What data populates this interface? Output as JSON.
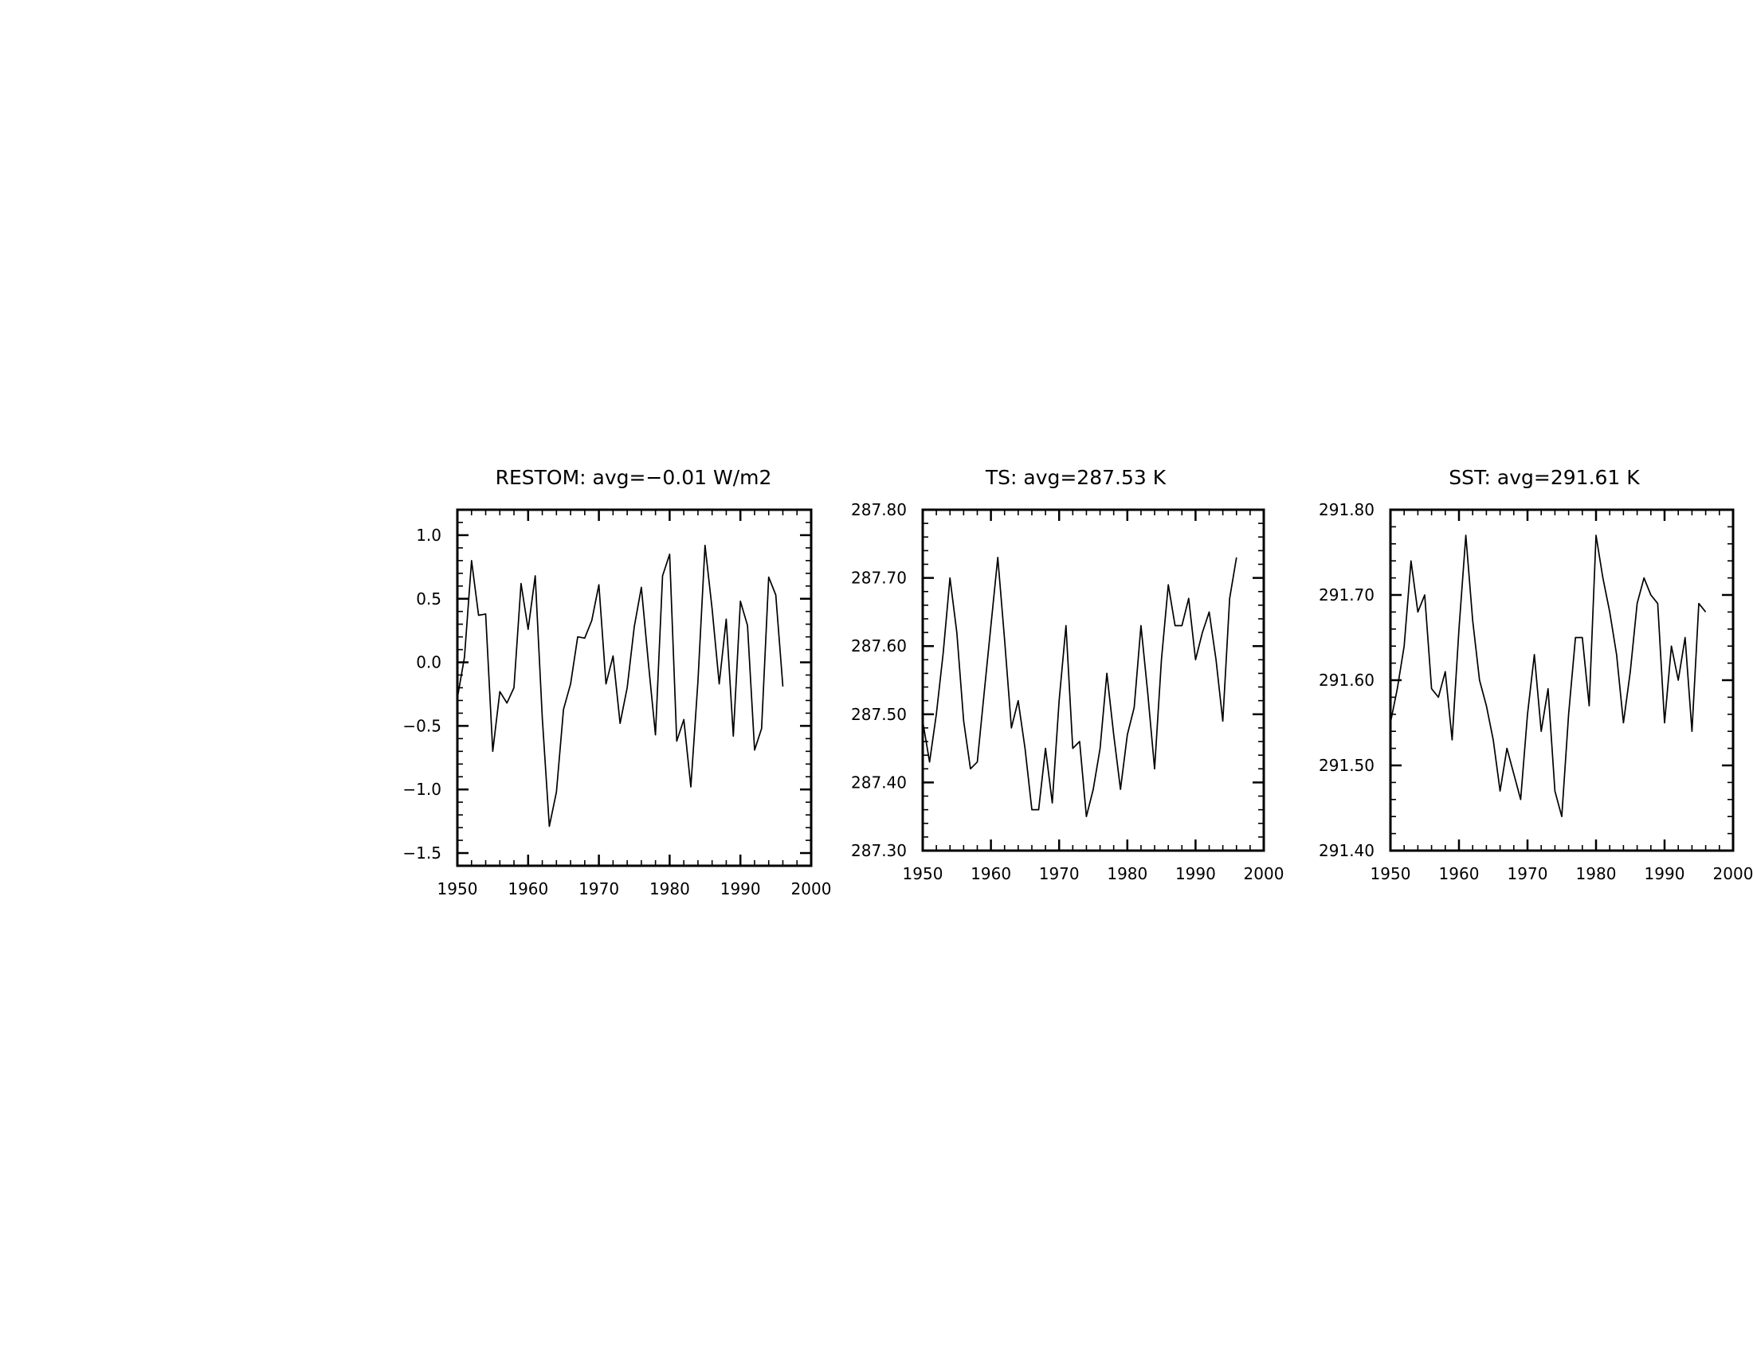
{
  "chart_data": [
    {
      "type": "line",
      "title": "RESTOM: avg=−0.01 W/m2",
      "xlabel": "",
      "ylabel": "",
      "xlim": [
        1950,
        2000
      ],
      "ylim": [
        -1.6,
        1.2
      ],
      "x_ticks": [
        1950,
        1960,
        1970,
        1980,
        1990,
        2000
      ],
      "x_tick_labels": [
        "1950",
        "1960",
        "1970",
        "1980",
        "1990",
        "2000"
      ],
      "y_ticks": [
        -1.5,
        -1.0,
        -0.5,
        0.0,
        0.5,
        1.0
      ],
      "y_tick_labels": [
        "−1.5",
        "−1.0",
        "−0.5",
        "0.0",
        "0.5",
        "1.0"
      ],
      "y_minor_step": 0.1,
      "x_minor_step": 2,
      "grid": false,
      "legend": "none",
      "line_color": "#000000",
      "x": [
        1950,
        1951,
        1952,
        1953,
        1954,
        1955,
        1956,
        1957,
        1958,
        1959,
        1960,
        1961,
        1962,
        1963,
        1964,
        1965,
        1966,
        1967,
        1968,
        1969,
        1970,
        1971,
        1972,
        1973,
        1974,
        1975,
        1976,
        1977,
        1978,
        1979,
        1980,
        1981,
        1982,
        1983,
        1984,
        1985,
        1986,
        1987,
        1988,
        1989,
        1990,
        1991,
        1992,
        1993,
        1994,
        1995,
        1996
      ],
      "y": [
        -0.28,
        0.04,
        0.8,
        0.37,
        0.38,
        -0.7,
        -0.23,
        -0.32,
        -0.2,
        0.62,
        0.26,
        0.68,
        -0.44,
        -1.29,
        -1.02,
        -0.37,
        -0.17,
        0.2,
        0.19,
        0.33,
        0.61,
        -0.17,
        0.05,
        -0.48,
        -0.2,
        0.28,
        0.59,
        -0.01,
        -0.57,
        0.68,
        0.85,
        -0.62,
        -0.45,
        -0.98,
        -0.15,
        0.92,
        0.42,
        -0.17,
        0.34,
        -0.58,
        0.48,
        0.29,
        -0.69,
        -0.52,
        0.67,
        0.53,
        -0.19
      ]
    },
    {
      "type": "line",
      "title": "TS: avg=287.53 K",
      "xlabel": "",
      "ylabel": "",
      "xlim": [
        1950,
        2000
      ],
      "ylim": [
        287.3,
        287.8
      ],
      "x_ticks": [
        1950,
        1960,
        1970,
        1980,
        1990,
        2000
      ],
      "x_tick_labels": [
        "1950",
        "1960",
        "1970",
        "1980",
        "1990",
        "2000"
      ],
      "y_ticks": [
        287.3,
        287.4,
        287.5,
        287.6,
        287.7,
        287.8
      ],
      "y_tick_labels": [
        "287.30",
        "287.40",
        "287.50",
        "287.60",
        "287.70",
        "287.80"
      ],
      "y_minor_step": 0.02,
      "x_minor_step": 2,
      "grid": false,
      "legend": "none",
      "line_color": "#000000",
      "x": [
        1950,
        1951,
        1952,
        1953,
        1954,
        1955,
        1956,
        1957,
        1958,
        1959,
        1960,
        1961,
        1962,
        1963,
        1964,
        1965,
        1966,
        1967,
        1968,
        1969,
        1970,
        1971,
        1972,
        1973,
        1974,
        1975,
        1976,
        1977,
        1978,
        1979,
        1980,
        1981,
        1982,
        1983,
        1984,
        1985,
        1986,
        1987,
        1988,
        1989,
        1990,
        1991,
        1992,
        1993,
        1994,
        1995,
        1996
      ],
      "y": [
        287.49,
        287.43,
        287.5,
        287.59,
        287.7,
        287.62,
        287.49,
        287.42,
        287.43,
        287.53,
        287.63,
        287.73,
        287.61,
        287.48,
        287.52,
        287.45,
        287.36,
        287.36,
        287.45,
        287.37,
        287.52,
        287.63,
        287.45,
        287.46,
        287.35,
        287.39,
        287.45,
        287.56,
        287.47,
        287.39,
        287.47,
        287.51,
        287.63,
        287.53,
        287.42,
        287.58,
        287.69,
        287.63,
        287.63,
        287.67,
        287.58,
        287.62,
        287.65,
        287.58,
        287.49,
        287.67,
        287.73
      ]
    },
    {
      "type": "line",
      "title": "SST: avg=291.61 K",
      "xlabel": "",
      "ylabel": "",
      "xlim": [
        1950,
        2000
      ],
      "ylim": [
        291.4,
        291.8
      ],
      "x_ticks": [
        1950,
        1960,
        1970,
        1980,
        1990,
        2000
      ],
      "x_tick_labels": [
        "1950",
        "1960",
        "1970",
        "1980",
        "1990",
        "2000"
      ],
      "y_ticks": [
        291.4,
        291.5,
        291.6,
        291.7,
        291.8
      ],
      "y_tick_labels": [
        "291.40",
        "291.50",
        "291.60",
        "291.70",
        "291.80"
      ],
      "y_minor_step": 0.02,
      "x_minor_step": 2,
      "grid": false,
      "legend": "none",
      "line_color": "#000000",
      "x": [
        1950,
        1951,
        1952,
        1953,
        1954,
        1955,
        1956,
        1957,
        1958,
        1959,
        1960,
        1961,
        1962,
        1963,
        1964,
        1965,
        1966,
        1967,
        1968,
        1969,
        1970,
        1971,
        1972,
        1973,
        1974,
        1975,
        1976,
        1977,
        1978,
        1979,
        1980,
        1981,
        1982,
        1983,
        1984,
        1985,
        1986,
        1987,
        1988,
        1989,
        1990,
        1991,
        1992,
        1993,
        1994,
        1995,
        1996
      ],
      "y": [
        291.55,
        291.59,
        291.64,
        291.74,
        291.68,
        291.7,
        291.59,
        291.58,
        291.61,
        291.53,
        291.66,
        291.77,
        291.67,
        291.6,
        291.57,
        291.53,
        291.47,
        291.52,
        291.49,
        291.46,
        291.56,
        291.63,
        291.54,
        291.59,
        291.47,
        291.44,
        291.56,
        291.65,
        291.65,
        291.57,
        291.77,
        291.72,
        291.68,
        291.63,
        291.55,
        291.61,
        291.69,
        291.72,
        291.7,
        291.69,
        291.55,
        291.64,
        291.6,
        291.65,
        291.54,
        291.69,
        291.68
      ]
    }
  ]
}
